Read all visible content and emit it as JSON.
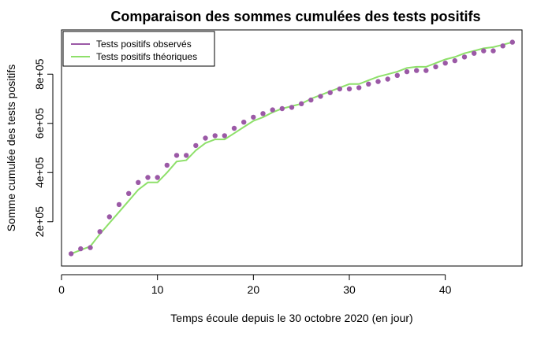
{
  "chart_data": {
    "type": "line",
    "title": "Comparaison des sommes cumulées des tests positifs",
    "xlabel": "Temps écoule depuis le 30 octobre 2020 (en jour)",
    "ylabel": "Somme cumulée des tests positifs",
    "xlim": [
      0,
      48
    ],
    "ylim": [
      20000,
      980000
    ],
    "x_ticks": [
      0,
      10,
      20,
      30,
      40
    ],
    "y_ticks": [
      200000,
      400000,
      600000,
      800000
    ],
    "y_tick_labels": [
      "2e+05",
      "4e+05",
      "6e+05",
      "8e+05"
    ],
    "legend_position": "top-left",
    "x": [
      1,
      2,
      3,
      4,
      5,
      6,
      7,
      8,
      9,
      10,
      11,
      12,
      13,
      14,
      15,
      16,
      17,
      18,
      19,
      20,
      21,
      22,
      23,
      24,
      25,
      26,
      27,
      28,
      29,
      30,
      31,
      32,
      33,
      34,
      35,
      36,
      37,
      38,
      39,
      40,
      41,
      42,
      43,
      44,
      45,
      46,
      47
    ],
    "series": [
      {
        "name": "Tests positifs observés",
        "style": "points",
        "color": "#9b59a6",
        "values": [
          70000,
          90000,
          95000,
          160000,
          220000,
          270000,
          315000,
          360000,
          380000,
          380000,
          430000,
          470000,
          470000,
          510000,
          540000,
          550000,
          550000,
          580000,
          605000,
          625000,
          640000,
          655000,
          660000,
          665000,
          680000,
          695000,
          710000,
          725000,
          740000,
          740000,
          745000,
          760000,
          770000,
          780000,
          795000,
          810000,
          815000,
          815000,
          830000,
          845000,
          855000,
          870000,
          885000,
          895000,
          895000,
          915000,
          930000
        ]
      },
      {
        "name": "Tests positifs théoriques",
        "style": "line",
        "color": "#8ee06a",
        "values": [
          70000,
          85000,
          100000,
          150000,
          195000,
          240000,
          285000,
          330000,
          360000,
          360000,
          400000,
          445000,
          450000,
          490000,
          520000,
          535000,
          535000,
          560000,
          585000,
          610000,
          625000,
          645000,
          660000,
          670000,
          680000,
          700000,
          715000,
          730000,
          745000,
          760000,
          760000,
          775000,
          790000,
          800000,
          810000,
          825000,
          830000,
          830000,
          845000,
          860000,
          870000,
          885000,
          895000,
          905000,
          910000,
          920000,
          930000
        ]
      }
    ]
  }
}
